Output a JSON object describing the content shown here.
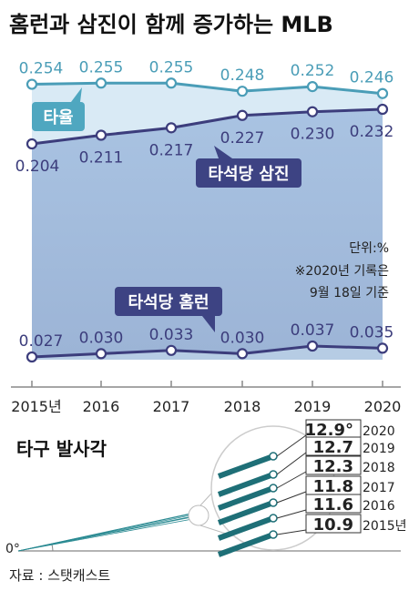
{
  "title": "홈런과 삼진이 함께 증가하는 MLB",
  "colors": {
    "batting": "#4a9db7",
    "strikeout": "#3c3d7c",
    "homerun": "#3c3d7c",
    "fill_light": "#d9eaf5",
    "fill_mid": "#b6cce4",
    "fill_dark": "#9fb6d8",
    "angle_line": "#2a8a92"
  },
  "chart_data": [
    {
      "type": "line",
      "categories": [
        "2015년",
        "2016",
        "2017",
        "2018",
        "2019",
        "2020"
      ],
      "series": [
        {
          "name": "타율",
          "values": [
            0.254,
            0.255,
            0.255,
            0.248,
            0.252,
            0.246
          ],
          "labels": [
            "0.254",
            "0.255",
            "0.255",
            "0.248",
            "0.252",
            "0.246"
          ]
        },
        {
          "name": "타석당 삼진",
          "values": [
            0.204,
            0.211,
            0.217,
            0.227,
            0.23,
            0.232
          ],
          "labels": [
            "0.204",
            "0.211",
            "0.217",
            "0.227",
            "0.230",
            "0.232"
          ]
        },
        {
          "name": "타석당 홈런",
          "values": [
            0.027,
            0.03,
            0.033,
            0.03,
            0.037,
            0.035
          ],
          "labels": [
            "0.027",
            "0.030",
            "0.033",
            "0.030",
            "0.037",
            "0.035"
          ]
        }
      ],
      "unit_note": "단위:%",
      "footnote_1": "※2020년 기록은",
      "footnote_2": "9월 18일 기준",
      "grid": false
    },
    {
      "type": "line",
      "title": "타구 발사각",
      "origin_label": "0°",
      "series": [
        {
          "year": "2020",
          "value": 12.9,
          "label": "12.9°"
        },
        {
          "year": "2019",
          "value": 12.7,
          "label": "12.7"
        },
        {
          "year": "2018",
          "value": 12.3,
          "label": "12.3"
        },
        {
          "year": "2017",
          "value": 11.8,
          "label": "11.8"
        },
        {
          "year": "2016",
          "value": 11.6,
          "label": "11.6"
        },
        {
          "year": "2015년",
          "value": 10.9,
          "label": "10.9"
        }
      ]
    }
  ],
  "source": "자료 : 스탯캐스트"
}
